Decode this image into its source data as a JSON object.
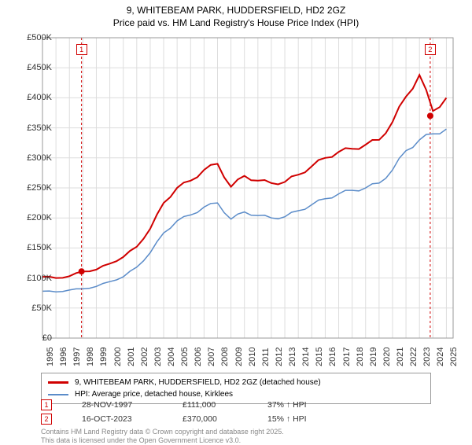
{
  "title_line1": "9, WHITEBEAM PARK, HUDDERSFIELD, HD2 2GZ",
  "title_line2": "Price paid vs. HM Land Registry's House Price Index (HPI)",
  "chart": {
    "type": "line",
    "background_color": "#ffffff",
    "plot_background": "#ffffff",
    "grid_color": "#dddddd",
    "x_years": [
      1995,
      1996,
      1997,
      1998,
      1999,
      2000,
      2001,
      2002,
      2003,
      2004,
      2005,
      2006,
      2007,
      2008,
      2009,
      2010,
      2011,
      2012,
      2013,
      2014,
      2015,
      2016,
      2017,
      2018,
      2019,
      2020,
      2021,
      2022,
      2023,
      2024,
      2025
    ],
    "xlim": [
      1995,
      2025.5
    ],
    "y_ticks": [
      0,
      50000,
      100000,
      150000,
      200000,
      250000,
      300000,
      350000,
      400000,
      450000,
      500000
    ],
    "y_tick_labels": [
      "£0",
      "£50K",
      "£100K",
      "£150K",
      "£200K",
      "£250K",
      "£300K",
      "£350K",
      "£400K",
      "£450K",
      "£500K"
    ],
    "ylim": [
      0,
      500000
    ],
    "series": [
      {
        "name": "9, WHITEBEAM PARK, HUDDERSFIELD, HD2 2GZ (detached house)",
        "color": "#d00000",
        "width": 2,
        "values_by_year": {
          "1995": 102000,
          "1996": 100000,
          "1997": 103000,
          "1998": 111000,
          "1999": 114000,
          "2000": 124000,
          "2001": 135000,
          "2002": 152000,
          "2003": 182000,
          "2004": 225000,
          "2005": 250000,
          "2006": 262000,
          "2007": 280000,
          "2008": 290000,
          "2009": 252000,
          "2010": 270000,
          "2011": 262000,
          "2012": 258000,
          "2013": 260000,
          "2014": 272000,
          "2015": 286000,
          "2016": 300000,
          "2017": 310000,
          "2018": 315000,
          "2019": 322000,
          "2020": 330000,
          "2021": 360000,
          "2022": 402000,
          "2023": 438000,
          "2024": 378000,
          "2025": 400000
        }
      },
      {
        "name": "HPI: Average price, detached house, Kirklees",
        "color": "#5b8cc9",
        "width": 1.5,
        "values_by_year": {
          "1995": 78000,
          "1996": 77000,
          "1997": 80000,
          "1998": 82000,
          "1999": 86000,
          "2000": 94000,
          "2001": 102000,
          "2002": 118000,
          "2003": 142000,
          "2004": 175000,
          "2005": 195000,
          "2006": 205000,
          "2007": 218000,
          "2008": 225000,
          "2009": 198000,
          "2010": 210000,
          "2011": 204000,
          "2012": 200000,
          "2013": 202000,
          "2014": 212000,
          "2015": 222000,
          "2016": 232000,
          "2017": 240000,
          "2018": 246000,
          "2019": 250000,
          "2020": 258000,
          "2021": 280000,
          "2022": 312000,
          "2023": 330000,
          "2024": 340000,
          "2025": 348000
        }
      }
    ],
    "markers": [
      {
        "id": "1",
        "year": 1997.9,
        "value": 111000,
        "vert_line_color": "#d00000",
        "vert_line_dash": "3,3",
        "dot_color": "#d00000"
      },
      {
        "id": "2",
        "year": 2023.8,
        "value": 370000,
        "vert_line_color": "#d00000",
        "vert_line_dash": "3,3",
        "dot_color": "#d00000"
      }
    ],
    "label_fontsize": 11,
    "title_fontsize": 12
  },
  "legend": {
    "row1": "9, WHITEBEAM PARK, HUDDERSFIELD, HD2 2GZ (detached house)",
    "row2": "HPI: Average price, detached house, Kirklees"
  },
  "data_points": [
    {
      "badge": "1",
      "date": "28-NOV-1997",
      "price": "£111,000",
      "delta": "37% ↑ HPI"
    },
    {
      "badge": "2",
      "date": "16-OCT-2023",
      "price": "£370,000",
      "delta": "15% ↑ HPI"
    }
  ],
  "footer_line1": "Contains HM Land Registry data © Crown copyright and database right 2025.",
  "footer_line2": "This data is licensed under the Open Government Licence v3.0."
}
